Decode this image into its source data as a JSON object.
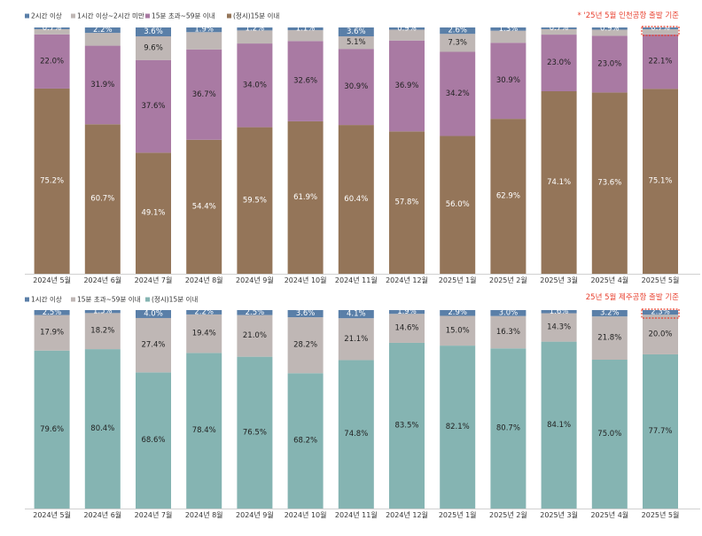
{
  "colors": {
    "over2h": "#5a7fa8",
    "h1to2": "#bfb7b5",
    "m15to59": "#a97aa3",
    "ontime_top": "#947559",
    "ontime_bottom": "#85b4b2",
    "note": "#e8402f",
    "axis": "#d0d0d0"
  },
  "chart_data": [
    {
      "type": "bar",
      "stacked": true,
      "note": "* '25년 5월 인천공항 출발 기준",
      "legend_position": "top-left",
      "legend": [
        "2시간 이상",
        "1시간 이상~2시간 미만",
        "15분 초과~59분 이내",
        "(정시)15분 이내"
      ],
      "categories": [
        "2024년 5월",
        "2024년 6월",
        "2024년 7월",
        "2024년 8월",
        "2024년 9월",
        "2024년 10월",
        "2024년 11월",
        "2024년 12월",
        "2025년 1월",
        "2025년 2월",
        "2025년 3월",
        "2025년 4월",
        "2025년 5월"
      ],
      "series": [
        {
          "name": "(정시)15분 이내",
          "color_key": "ontime_top",
          "values": [
            75.2,
            60.7,
            49.1,
            54.4,
            59.5,
            61.9,
            60.4,
            57.8,
            56.0,
            62.9,
            74.1,
            73.6,
            75.1
          ],
          "labels": [
            "75.2%",
            "60.7%",
            "49.1%",
            "54.4%",
            "59.5%",
            "61.9%",
            "60.4%",
            "57.8%",
            "56.0%",
            "62.9%",
            "74.1%",
            "73.6%",
            "75.1%"
          ]
        },
        {
          "name": "15분 초과~59분 이내",
          "color_key": "m15to59",
          "values": [
            22.0,
            31.9,
            37.6,
            36.7,
            34.0,
            32.6,
            30.9,
            36.9,
            34.2,
            30.9,
            23.0,
            23.0,
            22.1
          ],
          "labels": [
            "22.0%",
            "31.9%",
            "37.6%",
            "36.7%",
            "34.0%",
            "32.6%",
            "30.9%",
            "36.9%",
            "34.2%",
            "30.9%",
            "23.0%",
            "23.0%",
            "22.1%"
          ]
        },
        {
          "name": "1시간 이상~2시간 미만",
          "color_key": "h1to2",
          "values": [
            2.1,
            5.2,
            9.6,
            7.0,
            5.3,
            4.4,
            5.1,
            4.4,
            7.3,
            4.9,
            2.2,
            2.5,
            2.1
          ],
          "labels": [
            "",
            "",
            "9.6%",
            "",
            "",
            "",
            "5.1%",
            "",
            "7.3%",
            "",
            "",
            "",
            ""
          ]
        },
        {
          "name": "2시간 이상",
          "color_key": "over2h",
          "values": [
            0.7,
            2.2,
            3.6,
            1.9,
            1.2,
            1.1,
            3.6,
            0.9,
            2.6,
            1.3,
            0.7,
            0.9,
            0.7
          ],
          "labels": [
            "0.7%",
            "2.2%",
            "3.6%",
            "1.9%",
            "1.2%",
            "1.1%",
            "3.6%",
            "0.9%",
            "2.6%",
            "1.3%",
            "0.7%",
            "0.9%",
            "0.7%"
          ]
        }
      ],
      "ylim": [
        0,
        100
      ]
    },
    {
      "type": "bar",
      "stacked": true,
      "note": "25년 5월 제주공항 출발 기준",
      "legend_position": "top-left",
      "legend": [
        "1시간 이상",
        "15분 초과~59분 이내",
        "(정시)15분 이내"
      ],
      "categories": [
        "2024년 5월",
        "2024년 6월",
        "2024년 7월",
        "2024년 8월",
        "2024년 9월",
        "2024년 10월",
        "2024년 11월",
        "2024년 12월",
        "2025년 1월",
        "2025년 2월",
        "2025년 3월",
        "2025년 4월",
        "2025년 5월"
      ],
      "series": [
        {
          "name": "(정시)15분 이내",
          "color_key": "ontime_bottom",
          "values": [
            79.6,
            80.4,
            68.6,
            78.4,
            76.5,
            68.2,
            74.8,
            83.5,
            82.1,
            80.7,
            84.1,
            75.0,
            77.7
          ],
          "labels": [
            "79.6%",
            "80.4%",
            "68.6%",
            "78.4%",
            "76.5%",
            "68.2%",
            "74.8%",
            "83.5%",
            "82.1%",
            "80.7%",
            "84.1%",
            "75.0%",
            "77.7%"
          ]
        },
        {
          "name": "15분 초과~59분 이내",
          "color_key": "h1to2",
          "values": [
            17.9,
            18.2,
            27.4,
            19.4,
            21.0,
            28.2,
            21.1,
            14.6,
            15.0,
            16.3,
            14.3,
            21.8,
            20.0
          ],
          "labels": [
            "17.9%",
            "18.2%",
            "27.4%",
            "19.4%",
            "21.0%",
            "28.2%",
            "21.1%",
            "14.6%",
            "15.0%",
            "16.3%",
            "14.3%",
            "21.8%",
            "20.0%"
          ]
        },
        {
          "name": "1시간 이상",
          "color_key": "over2h",
          "values": [
            2.5,
            1.5,
            4.0,
            2.2,
            2.5,
            3.6,
            4.1,
            1.9,
            2.9,
            3.0,
            1.6,
            3.2,
            2.3
          ],
          "labels": [
            "2.5%",
            "1.5%",
            "4.0%",
            "2.2%",
            "2.5%",
            "3.6%",
            "4.1%",
            "1.9%",
            "2.9%",
            "3.0%",
            "1.6%",
            "3.2%",
            "2.3%"
          ]
        }
      ],
      "ylim": [
        0,
        100
      ]
    }
  ]
}
